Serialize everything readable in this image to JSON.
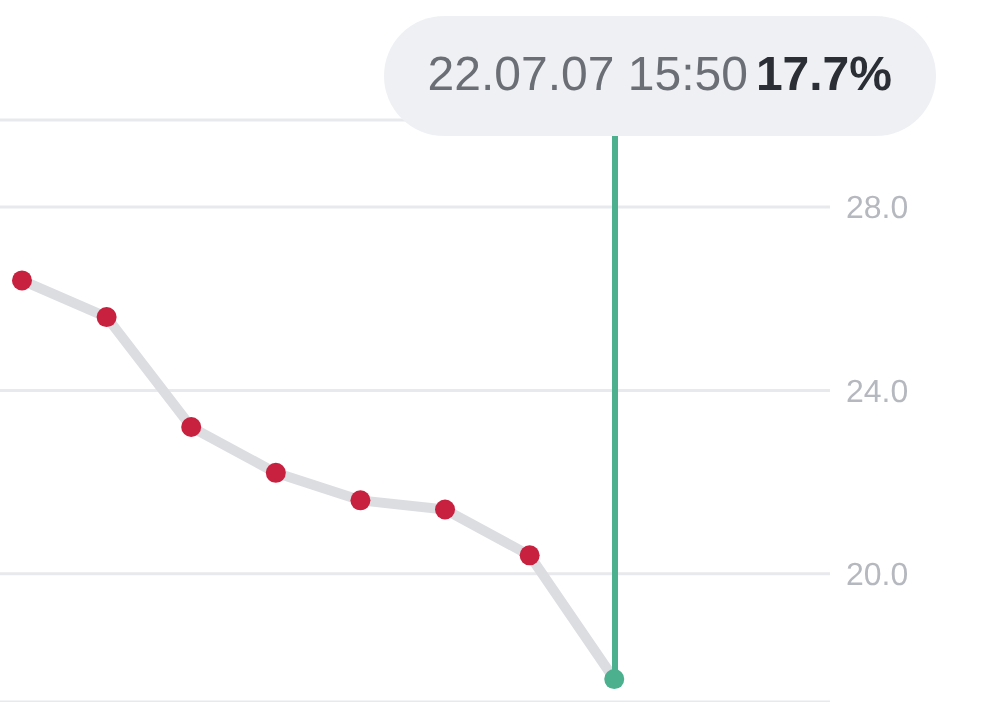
{
  "chart_data": {
    "type": "line",
    "categories": [
      null,
      null,
      null,
      null,
      null,
      null,
      null,
      null
    ],
    "ylim": [
      17.2,
      29.9
    ],
    "yticks": [
      {
        "value": 20,
        "label": "20.0"
      },
      {
        "value": 24,
        "label": "24.0"
      },
      {
        "value": 28,
        "label": "28.0"
      }
    ],
    "tick_labels": "y",
    "grid": "y",
    "marker": "circle",
    "series": [
      {
        "color": "#dcdde1",
        "colors": [
          "#c8203f",
          "#c8203f",
          "#c8203f",
          "#c8203f",
          "#c8203f",
          "#c8203f",
          "#c8203f",
          "#4caf8e"
        ],
        "values": [
          26.4,
          25.6,
          23.2,
          22.2,
          21.6,
          21.4,
          20.4,
          17.7
        ]
      }
    ],
    "annotations": [
      "22.07.07 15:50 **17.7%**"
    ]
  }
}
